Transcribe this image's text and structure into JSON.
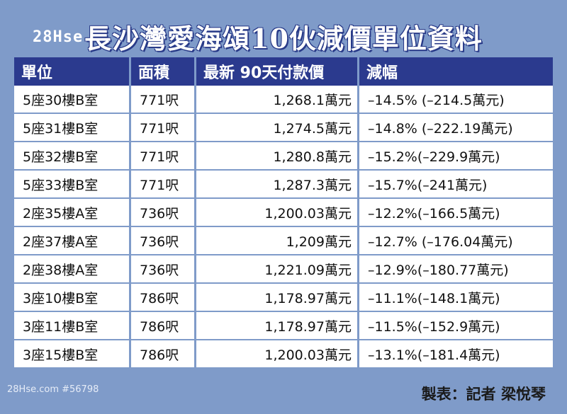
{
  "watermark": {
    "brand": "28Hse",
    "domain": ".com"
  },
  "title": "長沙灣愛海頌10伙減價單位資料",
  "table": {
    "headers": [
      "單位",
      "面積",
      "最新 90天付款價",
      "減幅"
    ],
    "rows": [
      [
        "5座30樓B室",
        "771呎",
        "1,268.1萬元",
        "–14.5% (–214.5萬元)"
      ],
      [
        "5座31樓B室",
        "771呎",
        "1,274.5萬元",
        "–14.8% (–222.19萬元)"
      ],
      [
        "5座32樓B室",
        "771呎",
        "1,280.8萬元",
        "–15.2%(–229.9萬元)"
      ],
      [
        "5座33樓B室",
        "771呎",
        "1,287.3萬元",
        "–15.7%(–241萬元)"
      ],
      [
        "2座35樓A室",
        "736呎",
        "1,200.03萬元",
        "–12.2%(–166.5萬元)"
      ],
      [
        "2座37樓A室",
        "736呎",
        "1,209萬元",
        "–12.7% (–176.04萬元)"
      ],
      [
        "2座38樓A室",
        "736呎",
        "1,221.09萬元",
        "–12.9%(–180.77萬元)"
      ],
      [
        "3座10樓B室",
        "786呎",
        "1,178.97萬元",
        "–11.1%(–148.1萬元)"
      ],
      [
        "3座11樓B室",
        "786呎",
        "1,178.97萬元",
        "–11.5%(–152.9萬元)"
      ],
      [
        "3座15樓B室",
        "786呎",
        "1,200.03萬元",
        "–13.1%(–181.4萬元)"
      ]
    ]
  },
  "footer": {
    "source_tag": "28Hse.com #56798",
    "credit": "製表：記者 梁悅琴"
  }
}
